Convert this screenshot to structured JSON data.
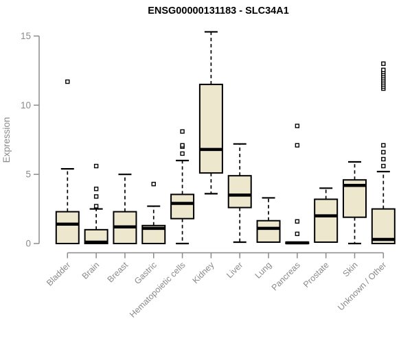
{
  "chart_data": {
    "type": "boxplot",
    "title": "ENSG00000131183 - SLC34A1",
    "ylabel": "Expression",
    "xlabel": "",
    "yticks": [
      0,
      5,
      10,
      15
    ],
    "ylim": [
      -0.7,
      15.6
    ],
    "grid": false,
    "legend": "none",
    "box_fill_color": "#EDE7CE",
    "box_stroke_color": "#000000",
    "axis_color": "#8a8a8a",
    "categories": [
      "Bladder",
      "Brain",
      "Breast",
      "Gastric",
      "Hematopoietic cells",
      "Kidney",
      "Liver",
      "Lung",
      "Pancreas",
      "Prostate",
      "Skin",
      "Unknown / Other"
    ],
    "boxes": [
      {
        "category": "Bladder",
        "low": 0,
        "q1": 0,
        "median": 1.4,
        "q3": 2.3,
        "high": 5.4,
        "outliers": [
          11.7
        ]
      },
      {
        "category": "Brain",
        "low": 0,
        "q1": 0,
        "median": 0.1,
        "q3": 1.0,
        "high": 2.5,
        "outliers": [
          2.7,
          3.4,
          3.95,
          5.6
        ]
      },
      {
        "category": "Breast",
        "low": 0,
        "q1": 0,
        "median": 1.2,
        "q3": 2.3,
        "high": 5.0,
        "outliers": []
      },
      {
        "category": "Gastric",
        "low": 0,
        "q1": 0,
        "median": 1.1,
        "q3": 1.3,
        "high": 2.7,
        "outliers": [
          4.3
        ]
      },
      {
        "category": "Hematopoietic cells",
        "low": 0,
        "q1": 1.8,
        "median": 2.9,
        "q3": 3.55,
        "high": 6.0,
        "outliers": [
          6.5,
          7.0,
          7.1,
          8.1
        ]
      },
      {
        "category": "Kidney",
        "low": 3.6,
        "q1": 5.1,
        "median": 6.8,
        "q3": 11.5,
        "high": 15.3,
        "outliers": []
      },
      {
        "category": "Liver",
        "low": 0.1,
        "q1": 2.6,
        "median": 3.5,
        "q3": 4.9,
        "high": 7.2,
        "outliers": []
      },
      {
        "category": "Lung",
        "low": 0.1,
        "q1": 0.1,
        "median": 1.1,
        "q3": 1.65,
        "high": 3.3,
        "outliers": []
      },
      {
        "category": "Pancreas",
        "low": 0,
        "q1": 0,
        "median": 0.05,
        "q3": 0.1,
        "high": 0.1,
        "outliers": [
          0.7,
          1.6,
          7.1,
          8.5
        ]
      },
      {
        "category": "Prostate",
        "low": 0.1,
        "q1": 0.1,
        "median": 2.0,
        "q3": 3.2,
        "high": 4.0,
        "outliers": []
      },
      {
        "category": "Skin",
        "low": 0,
        "q1": 1.9,
        "median": 4.2,
        "q3": 4.6,
        "high": 5.9,
        "outliers": []
      },
      {
        "category": "Unknown / Other",
        "low": 0,
        "q1": 0,
        "median": 0.3,
        "q3": 2.5,
        "high": 5.2,
        "outliers": [
          5.6,
          6.1,
          6.6,
          7.1,
          11.2,
          11.35,
          11.5,
          11.65,
          11.8,
          11.95,
          12.1,
          12.25,
          12.4,
          12.55,
          13.0
        ]
      }
    ]
  }
}
